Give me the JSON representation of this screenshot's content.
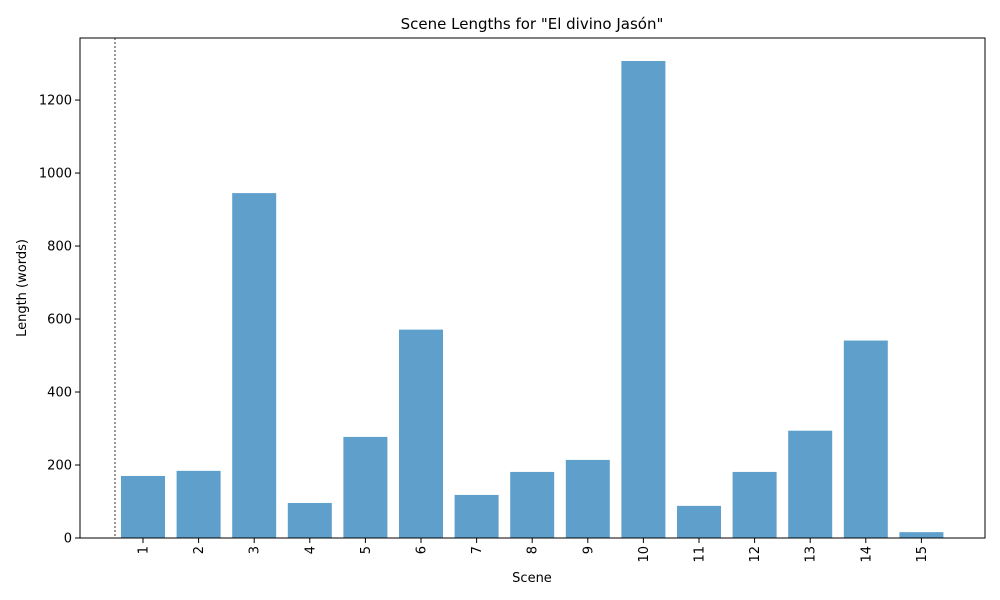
{
  "chart_data": {
    "type": "bar",
    "title": "Scene Lengths for \"El divino Jasón\"",
    "xlabel": "Scene",
    "ylabel": "Length (words)",
    "categories": [
      "1",
      "2",
      "3",
      "4",
      "5",
      "6",
      "7",
      "8",
      "9",
      "10",
      "11",
      "12",
      "13",
      "14",
      "15"
    ],
    "values": [
      170,
      184,
      945,
      96,
      277,
      571,
      118,
      181,
      214,
      1307,
      88,
      181,
      294,
      541,
      16
    ],
    "ylim": [
      0,
      1370
    ],
    "yticks": [
      0,
      200,
      400,
      600,
      800,
      1000,
      1200
    ],
    "bar_color": "#5f9fcc",
    "grid": false,
    "x_tick_rotation": "vertical",
    "reference_line": "dotted vertical line left of first bar"
  }
}
